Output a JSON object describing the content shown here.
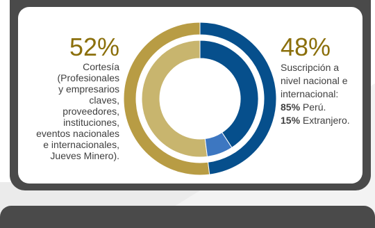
{
  "chart_data": {
    "type": "pie",
    "variant": "nested-donut",
    "outer_ring": [
      {
        "label": "Cortesía",
        "value": 52,
        "color": "#b89c44"
      },
      {
        "label": "Suscripción a nivel nacional e internacional",
        "value": 48,
        "color": "#064f8c"
      }
    ],
    "inner_ring": [
      {
        "label": "Cortesía",
        "value": 52,
        "color": "#c8b56e"
      },
      {
        "label": "Perú",
        "value": 40.8,
        "color": "#064f8c"
      },
      {
        "label": "Extranjero",
        "value": 7.2,
        "color": "#3d77c1"
      }
    ]
  },
  "left": {
    "pct": "52%",
    "lines": [
      "Cortesía",
      "(Profesionales",
      "y empresarios",
      "claves,",
      "proveedores,",
      "instituciones,",
      "eventos nacionales",
      "e internacionales,",
      "Jueves Minero)."
    ]
  },
  "right": {
    "pct": "48%",
    "lines": [
      "Suscripción a",
      "nivel nacional e",
      "internacional:"
    ],
    "breakdown": [
      {
        "pct": "85%",
        "label": " Perú."
      },
      {
        "pct": "15%",
        "label": " Extranjero."
      }
    ]
  }
}
